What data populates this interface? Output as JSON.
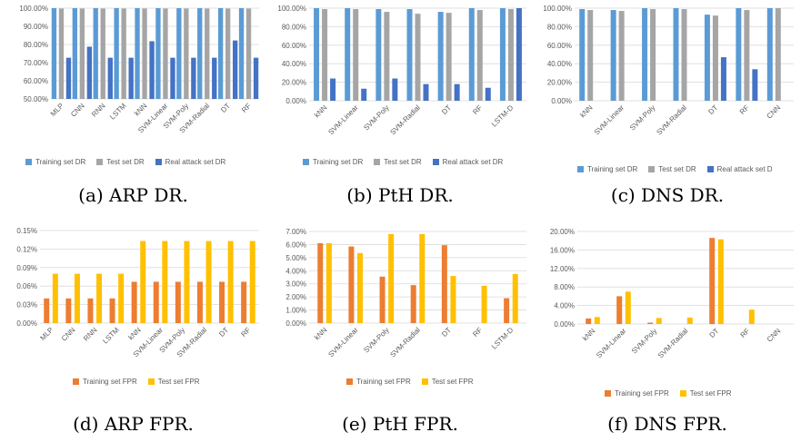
{
  "colors": {
    "training_dr": "#5B9BD5",
    "test_dr": "#A5A5A5",
    "real_dr": "#4472C4",
    "training_fpr": "#ED7D31",
    "test_fpr": "#FFC000",
    "grid": "#D9D9D9",
    "tick_text": "#595959"
  },
  "chart_data": [
    {
      "id": "a",
      "caption": "(a) ARP DR.",
      "type": "bar",
      "categories": [
        "MLP",
        "CNN",
        "RNN",
        "LSTM",
        "kNN",
        "SVM-Linear",
        "SVM-Poly",
        "SVM-Radial",
        "DT",
        "RF"
      ],
      "y_ticks": [
        "50.00%",
        "60.00%",
        "70.00%",
        "80.00%",
        "90.00%",
        "100.00%"
      ],
      "ylim": [
        50,
        100
      ],
      "grid": true,
      "legend_position": "bottom",
      "series": [
        {
          "name": "Training set DR",
          "values": [
            100,
            100,
            100,
            100,
            100,
            100,
            100,
            100,
            100,
            100
          ]
        },
        {
          "name": "Test set DR",
          "values": [
            99.8,
            99.8,
            99.8,
            99.8,
            99.8,
            99.8,
            99.8,
            99.8,
            99.8,
            99.8
          ]
        },
        {
          "name": "Real attack set DR",
          "values": [
            72.7,
            78.8,
            72.7,
            72.7,
            81.8,
            72.7,
            72.7,
            72.7,
            82.2,
            72.7
          ]
        }
      ]
    },
    {
      "id": "b",
      "caption": "(b) PtH DR.",
      "type": "bar",
      "categories": [
        "kNN",
        "SVM-Linear",
        "SVM-Poly",
        "SVM-Radial",
        "DT",
        "RF",
        "LSTM-D"
      ],
      "y_ticks": [
        "0.00%",
        "20.00%",
        "40.00%",
        "60.00%",
        "80.00%",
        "100.00%"
      ],
      "ylim": [
        0,
        100
      ],
      "grid": true,
      "legend_position": "bottom",
      "series": [
        {
          "name": "Training set DR",
          "values": [
            100,
            100,
            99,
            99,
            96,
            100,
            100
          ]
        },
        {
          "name": "Test set DR",
          "values": [
            99,
            99,
            96,
            94,
            95,
            98,
            99
          ]
        },
        {
          "name": "Real attack set DR",
          "values": [
            24,
            13,
            24,
            18,
            18,
            14,
            100
          ]
        }
      ]
    },
    {
      "id": "c",
      "caption": "(c) DNS DR.",
      "type": "bar",
      "categories": [
        "kNN",
        "SVM-Linear",
        "SVM-Poly",
        "SVM-Radial",
        "DT",
        "RF",
        "CNN"
      ],
      "y_ticks": [
        "0.00%",
        "20.00%",
        "40.00%",
        "60.00%",
        "80.00%",
        "100.00%"
      ],
      "ylim": [
        0,
        100
      ],
      "grid": true,
      "legend_position": "bottom",
      "series": [
        {
          "name": "Training set DR",
          "values": [
            99,
            98,
            100,
            100,
            93,
            100,
            100
          ]
        },
        {
          "name": "Test set DR",
          "values": [
            98,
            97,
            99,
            99,
            92,
            98,
            100
          ]
        },
        {
          "name": "Real attack set D",
          "values": [
            0,
            0,
            0,
            0,
            47,
            34,
            0
          ]
        }
      ]
    },
    {
      "id": "d",
      "caption": "(d) ARP FPR.",
      "type": "bar",
      "categories": [
        "MLP",
        "CNN",
        "RNN",
        "LSTM",
        "kNN",
        "SVM-Linear",
        "SVM-Poly",
        "SVM-Radial",
        "DT",
        "RF"
      ],
      "y_ticks": [
        "0.00%",
        "0.03%",
        "0.06%",
        "0.09%",
        "0.12%",
        "0.15%"
      ],
      "ylim": [
        0,
        0.15
      ],
      "grid": true,
      "legend_position": "bottom",
      "series": [
        {
          "name": "Training set FPR",
          "values": [
            0.04,
            0.04,
            0.04,
            0.04,
            0.067,
            0.067,
            0.067,
            0.067,
            0.067,
            0.067
          ]
        },
        {
          "name": "Test set FPR",
          "values": [
            0.08,
            0.08,
            0.08,
            0.08,
            0.133,
            0.133,
            0.133,
            0.133,
            0.133,
            0.133
          ]
        }
      ]
    },
    {
      "id": "e",
      "caption": "(e) PtH FPR.",
      "type": "bar",
      "categories": [
        "kNN",
        "SVM-Linear",
        "SVM-Poly",
        "SVM-Radial",
        "DT",
        "RF",
        "LSTM-D"
      ],
      "y_ticks": [
        "0.00%",
        "1.00%",
        "2.00%",
        "3.00%",
        "4.00%",
        "5.00%",
        "6.00%",
        "7.00%"
      ],
      "ylim": [
        0,
        7
      ],
      "grid": true,
      "legend_position": "bottom",
      "series": [
        {
          "name": "Training set FPR",
          "values": [
            6.1,
            5.85,
            3.55,
            2.9,
            5.95,
            0,
            1.9
          ]
        },
        {
          "name": "Test set FPR",
          "values": [
            6.1,
            5.35,
            6.8,
            6.8,
            3.6,
            2.85,
            3.75
          ]
        }
      ]
    },
    {
      "id": "f",
      "caption": "(f) DNS FPR.",
      "type": "bar",
      "categories": [
        "kNN",
        "SVM-Linear",
        "SVM-Poly",
        "SVM-Radial",
        "DT",
        "RF",
        "CNN"
      ],
      "y_ticks": [
        "0.00%",
        "4.00%",
        "8.00%",
        "12.00%",
        "16.00%",
        "20.00%"
      ],
      "ylim": [
        0,
        20
      ],
      "grid": true,
      "legend_position": "bottom",
      "series": [
        {
          "name": "Training set FPR",
          "values": [
            1.2,
            6.0,
            0.3,
            0,
            18.6,
            0,
            0
          ]
        },
        {
          "name": "Test set FPR",
          "values": [
            1.5,
            7.0,
            1.3,
            1.4,
            18.3,
            3.1,
            0
          ]
        }
      ]
    }
  ]
}
